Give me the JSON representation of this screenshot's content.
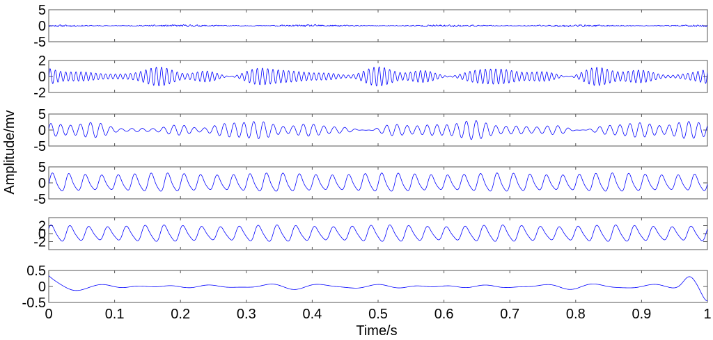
{
  "chart_data": {
    "type": "line",
    "layout": "stacked-subplots",
    "xlabel": "Time/s",
    "ylabel": "Amplitude/mv",
    "xlim": [
      0,
      1
    ],
    "xticks": [
      0,
      0.1,
      0.2,
      0.3,
      0.4,
      0.5,
      0.6,
      0.7,
      0.8,
      0.9,
      1
    ],
    "xtick_labels": [
      "0",
      "0.1",
      "0.2",
      "0.3",
      "0.4",
      "0.5",
      "0.6",
      "0.7",
      "0.8",
      "0.9",
      "1"
    ],
    "grid": false,
    "line_color": "#0000ff",
    "subplots": [
      {
        "ylim": [
          -5,
          5
        ],
        "yticks": [
          5,
          0,
          -5
        ],
        "ytick_labels": [
          "5",
          "0",
          "-5"
        ],
        "signal": {
          "kind": "noise",
          "amplitude": 0.35,
          "cycles": 0,
          "seed": 11
        }
      },
      {
        "ylim": [
          -2,
          2
        ],
        "yticks": [
          2,
          0,
          -2
        ],
        "ytick_labels": [
          "2",
          "0",
          "-2"
        ],
        "signal": {
          "kind": "am-oscillation",
          "amplitude": 1.1,
          "cycles": 130,
          "seed": 23
        }
      },
      {
        "ylim": [
          -5,
          5
        ],
        "yticks": [
          5,
          0,
          -5
        ],
        "ytick_labels": [
          "5",
          "0",
          "-5"
        ],
        "signal": {
          "kind": "am-oscillation",
          "amplitude": 2.6,
          "cycles": 65,
          "seed": 37
        }
      },
      {
        "ylim": [
          -5,
          5
        ],
        "yticks": [
          5,
          0,
          -5
        ],
        "ytick_labels": [
          "5",
          "0",
          "-5"
        ],
        "signal": {
          "kind": "sinusoid",
          "amplitude": 2.8,
          "cycles": 40,
          "seed": 41
        }
      },
      {
        "ylim": [
          -4,
          4
        ],
        "yticks": [
          2,
          0,
          -2
        ],
        "ytick_labels": [
          "2",
          "0",
          "-2"
        ],
        "signal": {
          "kind": "sinusoid",
          "amplitude": 2.0,
          "cycles": 35,
          "seed": 53
        }
      },
      {
        "ylim": [
          -0.5,
          0.5
        ],
        "yticks": [
          0.5,
          0,
          -0.5
        ],
        "ytick_labels": [
          "0.5",
          "0",
          "-0.5"
        ],
        "signal": {
          "kind": "residual",
          "amplitude": 0.06,
          "cycles": 12,
          "seed": 67
        }
      }
    ]
  }
}
